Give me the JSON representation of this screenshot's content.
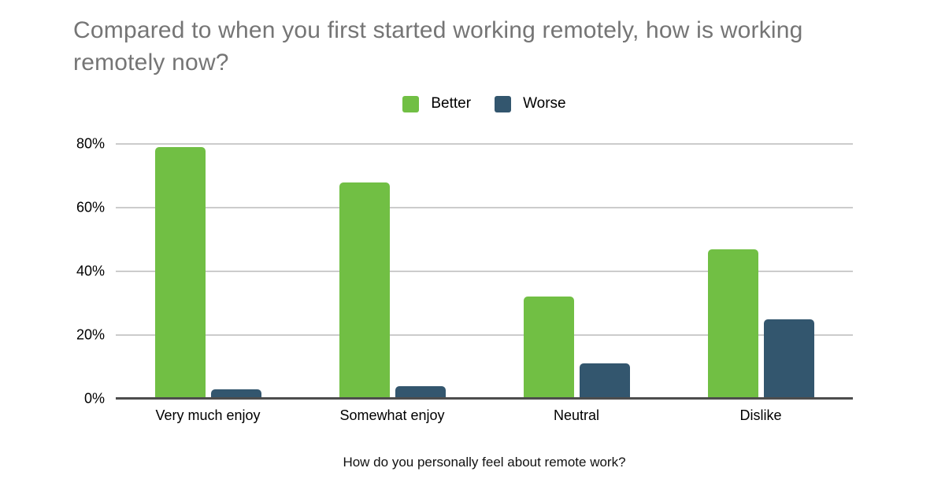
{
  "title": "Compared to when you first started working remotely, how is working remotely now?",
  "chart_data": {
    "type": "bar",
    "title": "Compared to when you first started working remotely, how is working remotely now?",
    "categories": [
      "Very much enjoy",
      "Somewhat enjoy",
      "Neutral",
      "Dislike"
    ],
    "series": [
      {
        "name": "Better",
        "color": "#71bf44",
        "values": [
          79,
          68,
          32,
          47
        ]
      },
      {
        "name": "Worse",
        "color": "#33566e",
        "values": [
          3,
          4,
          11,
          25
        ]
      }
    ],
    "xlabel": "How do you personally feel about remote work?",
    "ylabel": "",
    "ylim": [
      0,
      80
    ],
    "yticks": [
      "0%",
      "20%",
      "40%",
      "60%",
      "80%"
    ],
    "grid": true,
    "legend_position": "top"
  },
  "colors": {
    "better": "#71bf44",
    "worse": "#33566e",
    "title_text": "#757575",
    "gridline": "#cccccc",
    "axis_baseline": "#4d4d4d",
    "tick_text": "#000000"
  }
}
